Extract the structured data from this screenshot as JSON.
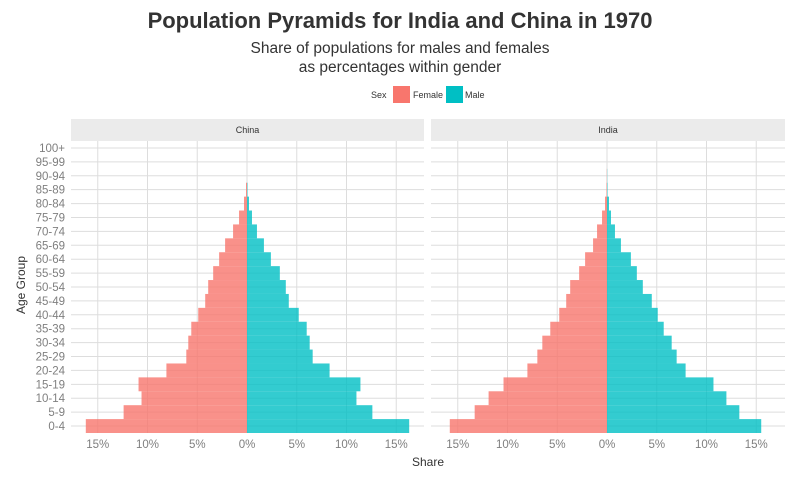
{
  "colors": {
    "female": "#F8766D",
    "male": "#00BFC4",
    "strip_bg": "#EBEBEB",
    "grid": "#DDDDDD"
  },
  "chart_data": {
    "type": "bar",
    "title": "Population Pyramids for India and China in 1970",
    "subtitle_line1": "Share of populations for males and females",
    "subtitle_line2": "as percentages within gender",
    "xlabel": "Share",
    "ylabel": "Age Group",
    "xlim": [
      -18,
      18
    ],
    "x_ticks": [
      -15,
      -10,
      -5,
      0,
      5,
      10,
      15
    ],
    "x_tick_labels": [
      "15%",
      "10%",
      "5%",
      "0%",
      "5%",
      "10%",
      "15%"
    ],
    "legend": {
      "title": "Sex",
      "placement": "top",
      "entries": [
        "Female",
        "Male"
      ]
    },
    "grid": true,
    "categories": [
      "0-4",
      "5-9",
      "10-14",
      "15-19",
      "20-24",
      "25-29",
      "30-34",
      "35-39",
      "40-44",
      "45-49",
      "50-54",
      "55-59",
      "60-64",
      "65-69",
      "70-74",
      "75-79",
      "80-84",
      "85-89",
      "90-94",
      "95-99",
      "100+"
    ],
    "panels": [
      {
        "facet": "China",
        "series": [
          {
            "name": "Female",
            "values": [
              16.2,
              12.4,
              10.6,
              10.9,
              8.1,
              6.1,
              5.9,
              5.6,
              4.9,
              4.2,
              3.9,
              3.4,
              2.8,
              2.2,
              1.4,
              0.8,
              0.3,
              0.1,
              0.0,
              0.0,
              0.0
            ]
          },
          {
            "name": "Male",
            "values": [
              16.3,
              12.6,
              11.0,
              11.4,
              8.3,
              6.6,
              6.3,
              6.0,
              5.2,
              4.2,
              3.9,
              3.3,
              2.4,
              1.7,
              1.0,
              0.5,
              0.2,
              0.05,
              0.0,
              0.0,
              0.0
            ]
          }
        ]
      },
      {
        "facet": "India",
        "series": [
          {
            "name": "Female",
            "values": [
              15.8,
              13.3,
              11.9,
              10.4,
              8.0,
              7.0,
              6.5,
              5.7,
              4.8,
              4.1,
              3.7,
              2.8,
              2.2,
              1.4,
              1.0,
              0.5,
              0.2,
              0.05,
              0.02,
              0.0,
              0.0
            ]
          },
          {
            "name": "Male",
            "values": [
              15.5,
              13.3,
              12.0,
              10.7,
              7.9,
              7.0,
              6.5,
              5.7,
              5.1,
              4.5,
              3.6,
              3.0,
              2.4,
              1.4,
              0.8,
              0.4,
              0.2,
              0.05,
              0.02,
              0.0,
              0.0
            ]
          }
        ]
      }
    ]
  }
}
